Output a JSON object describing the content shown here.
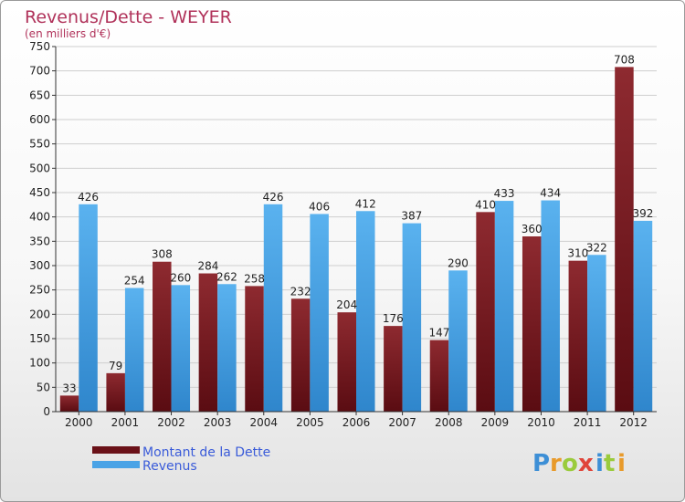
{
  "chart_data": {
    "type": "bar",
    "title": "Revenus/Dette - WEYER",
    "subtitle": "(en milliers d'€)",
    "categories": [
      "2000",
      "2001",
      "2002",
      "2003",
      "2004",
      "2005",
      "2006",
      "2007",
      "2008",
      "2009",
      "2010",
      "2011",
      "2012"
    ],
    "series": [
      {
        "name": "Montant de la Dette",
        "color": "#7a1c22",
        "values": [
          33,
          79,
          308,
          284,
          258,
          232,
          204,
          176,
          147,
          410,
          360,
          310,
          708
        ]
      },
      {
        "name": "Revenus",
        "color": "#4aa3e6",
        "values": [
          426,
          254,
          260,
          262,
          426,
          406,
          412,
          387,
          290,
          433,
          434,
          322,
          392
        ]
      }
    ],
    "ylim": [
      0,
      750
    ],
    "yticks": [
      0,
      50,
      100,
      150,
      200,
      250,
      300,
      350,
      400,
      450,
      500,
      550,
      600,
      650,
      700,
      750
    ],
    "grid": true,
    "legend": "bottom-left"
  },
  "logo": {
    "letters": [
      "P",
      "r",
      "o",
      "x",
      "i",
      "t",
      "i"
    ]
  }
}
